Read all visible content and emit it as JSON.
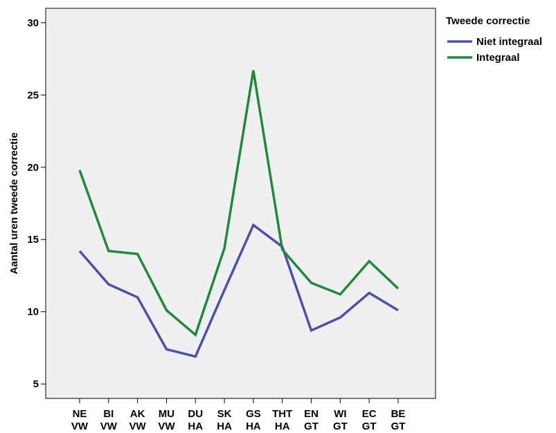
{
  "chart_data": {
    "type": "line",
    "ylabel": "Aantal uren tweede correctie",
    "xlabel": "",
    "ylim": [
      4,
      31
    ],
    "yticks": [
      5,
      10,
      15,
      20,
      25,
      30
    ],
    "categories": [
      [
        "NE",
        "VW"
      ],
      [
        "BI",
        "VW"
      ],
      [
        "AK",
        "VW"
      ],
      [
        "MU",
        "VW"
      ],
      [
        "DU",
        "HA"
      ],
      [
        "SK",
        "HA"
      ],
      [
        "GS",
        "HA"
      ],
      [
        "THT",
        "HA"
      ],
      [
        "EN",
        "GT"
      ],
      [
        "WI",
        "GT"
      ],
      [
        "EC",
        "GT"
      ],
      [
        "BE",
        "GT"
      ]
    ],
    "legend": {
      "title": "Tweede correctie",
      "position": "top-right-outside"
    },
    "grid": false,
    "series": [
      {
        "name": "Niet integraal",
        "color": "#4a50b0",
        "values": [
          14.2,
          11.9,
          11.0,
          7.4,
          6.9,
          11.5,
          16.0,
          14.5,
          8.7,
          9.6,
          11.3,
          10.1
        ]
      },
      {
        "name": "Integraal",
        "color": "#1f8a3a",
        "values": [
          19.8,
          14.2,
          14.0,
          10.1,
          8.4,
          14.4,
          26.7,
          14.3,
          12.0,
          11.2,
          13.5,
          11.6
        ]
      }
    ]
  }
}
